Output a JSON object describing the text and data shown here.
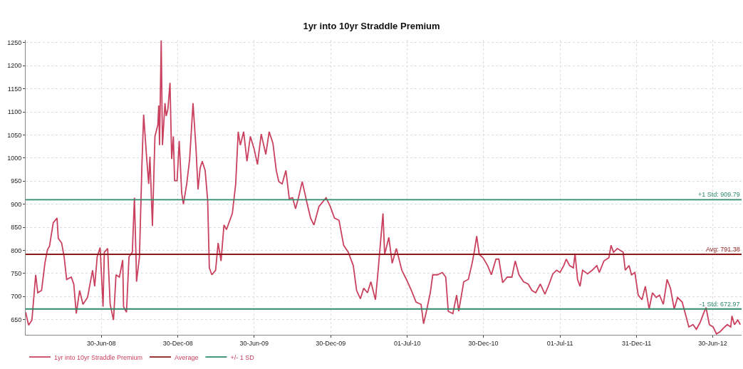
{
  "chart_data": {
    "type": "line",
    "title": "1yr into 10yr Straddle Premium",
    "xlim": [
      "2008-01-01",
      "2012-09-07"
    ],
    "ylim": [
      617,
      1256
    ],
    "xticks": [
      {
        "value": "2008-06-30",
        "label": "30-Jun-08"
      },
      {
        "value": "2008-12-30",
        "label": "30-Dec-08"
      },
      {
        "value": "2009-06-30",
        "label": "30-Jun-09"
      },
      {
        "value": "2009-12-30",
        "label": "30-Dec-09"
      },
      {
        "value": "2010-07-01",
        "label": "01-Jul-10"
      },
      {
        "value": "2010-12-30",
        "label": "30-Dec-10"
      },
      {
        "value": "2011-07-01",
        "label": "01-Jul-11"
      },
      {
        "value": "2011-12-31",
        "label": "31-Dec-11"
      },
      {
        "value": "2012-06-30",
        "label": "30-Jun-12"
      }
    ],
    "yticks": [
      650,
      700,
      750,
      800,
      850,
      900,
      950,
      1000,
      1050,
      1100,
      1150,
      1200,
      1250
    ],
    "grid": true,
    "legend": "bottom left",
    "marker": "none",
    "line_style": "solid",
    "series": [
      {
        "name": "1yr into 10yr Straddle Premium",
        "color": "#c9415e",
        "x": [
          "2008-01-01",
          "2008-01-08",
          "2008-01-16",
          "2008-01-25",
          "2008-01-30",
          "2008-02-08",
          "2008-02-16",
          "2008-02-22",
          "2008-02-27",
          "2008-03-07",
          "2008-03-16",
          "2008-03-19",
          "2008-03-27",
          "2008-04-02",
          "2008-04-08",
          "2008-04-19",
          "2008-04-25",
          "2008-05-01",
          "2008-05-09",
          "2008-05-17",
          "2008-05-28",
          "2008-06-09",
          "2008-06-14",
          "2008-06-20",
          "2008-06-27",
          "2008-07-04",
          "2008-07-07",
          "2008-07-15",
          "2008-07-21",
          "2008-07-29",
          "2008-08-04",
          "2008-08-12",
          "2008-08-20",
          "2008-08-22",
          "2008-08-29",
          "2008-09-04",
          "2008-09-12",
          "2008-09-17",
          "2008-09-21",
          "2008-09-22",
          "2008-09-29",
          "2008-10-05",
          "2008-10-09",
          "2008-10-16",
          "2008-10-21",
          "2008-10-24",
          "2008-10-30",
          "2008-11-05",
          "2008-11-12",
          "2008-11-14",
          "2008-11-16",
          "2008-11-20",
          "2008-11-23",
          "2008-11-29",
          "2008-12-02",
          "2008-12-06",
          "2008-12-11",
          "2008-12-15",
          "2008-12-19",
          "2008-12-22",
          "2008-12-28",
          "2009-01-02",
          "2009-01-08",
          "2009-01-12",
          "2009-01-20",
          "2009-01-27",
          "2009-02-04",
          "2009-02-11",
          "2009-02-16",
          "2009-02-21",
          "2009-02-26",
          "2009-03-05",
          "2009-03-11",
          "2009-03-15",
          "2009-03-21",
          "2009-03-30",
          "2009-04-05",
          "2009-04-12",
          "2009-04-19",
          "2009-04-25",
          "2009-05-01",
          "2009-05-09",
          "2009-05-17",
          "2009-05-23",
          "2009-05-28",
          "2009-06-05",
          "2009-06-13",
          "2009-06-21",
          "2009-06-30",
          "2009-07-08",
          "2009-07-17",
          "2009-07-28",
          "2009-08-05",
          "2009-08-14",
          "2009-08-22",
          "2009-08-28",
          "2009-09-05",
          "2009-09-14",
          "2009-09-22",
          "2009-09-30",
          "2009-10-07",
          "2009-10-14",
          "2009-10-23",
          "2009-11-03",
          "2009-11-12",
          "2009-11-20",
          "2009-12-02",
          "2009-12-19",
          "2009-12-29",
          "2010-01-08",
          "2010-01-19",
          "2010-01-30",
          "2010-02-10",
          "2010-02-22",
          "2010-03-02",
          "2010-03-11",
          "2010-03-19",
          "2010-03-28",
          "2010-04-05",
          "2010-04-16",
          "2010-04-22",
          "2010-05-04",
          "2010-05-08",
          "2010-05-18",
          "2010-05-26",
          "2010-06-05",
          "2010-06-18",
          "2010-06-29",
          "2010-07-11",
          "2010-07-22",
          "2010-08-03",
          "2010-08-09",
          "2010-08-17",
          "2010-08-25",
          "2010-08-31",
          "2010-09-11",
          "2010-09-23",
          "2010-10-01",
          "2010-10-07",
          "2010-10-18",
          "2010-10-27",
          "2010-11-01",
          "2010-11-13",
          "2010-11-24",
          "2010-12-03",
          "2010-12-08",
          "2010-12-14",
          "2010-12-20",
          "2010-12-29",
          "2011-01-09",
          "2011-01-18",
          "2011-01-29",
          "2011-02-05",
          "2011-02-14",
          "2011-02-25",
          "2011-03-08",
          "2011-03-16",
          "2011-03-25",
          "2011-04-05",
          "2011-04-16",
          "2011-04-25",
          "2011-05-04",
          "2011-05-15",
          "2011-05-26",
          "2011-06-03",
          "2011-06-14",
          "2011-06-23",
          "2011-07-01",
          "2011-07-10",
          "2011-07-16",
          "2011-07-24",
          "2011-08-02",
          "2011-08-06",
          "2011-08-12",
          "2011-08-18",
          "2011-08-24",
          "2011-09-05",
          "2011-09-16",
          "2011-09-27",
          "2011-10-03",
          "2011-10-14",
          "2011-10-26",
          "2011-10-31",
          "2011-11-06",
          "2011-11-15",
          "2011-11-29",
          "2011-12-04",
          "2011-12-13",
          "2011-12-19",
          "2011-12-27",
          "2012-01-04",
          "2012-01-13",
          "2012-01-21",
          "2012-01-30",
          "2012-02-07",
          "2012-02-16",
          "2012-02-24",
          "2012-03-04",
          "2012-03-13",
          "2012-03-21",
          "2012-03-30",
          "2012-04-07",
          "2012-04-18",
          "2012-04-27",
          "2012-05-04",
          "2012-05-14",
          "2012-05-22",
          "2012-05-31",
          "2012-06-08",
          "2012-06-14",
          "2012-06-22",
          "2012-07-01",
          "2012-07-09",
          "2012-07-18",
          "2012-07-26",
          "2012-08-04",
          "2012-08-12",
          "2012-08-15",
          "2012-08-21",
          "2012-08-29",
          "2012-09-04"
        ],
        "values": [
          666,
          638,
          649,
          747,
          708,
          713,
          772,
          801,
          809,
          860,
          870,
          826,
          816,
          786,
          737,
          742,
          727,
          663,
          713,
          683,
          698,
          757,
          722,
          786,
          806,
          678,
          796,
          804,
          683,
          649,
          747,
          742,
          779,
          678,
          666,
          786,
          796,
          914,
          777,
          732,
          786,
          988,
          1094,
          1003,
          944,
          1003,
          853,
          1047,
          1072,
          1114,
          1028,
          1255,
          1028,
          1119,
          1091,
          1106,
          1163,
          998,
          1047,
          951,
          951,
          1037,
          924,
          900,
          944,
          998,
          1119,
          1023,
          932,
          978,
          993,
          973,
          909,
          762,
          747,
          757,
          816,
          777,
          855,
          845,
          860,
          880,
          944,
          1057,
          1028,
          1057,
          993,
          1047,
          1020,
          986,
          1052,
          1008,
          1057,
          1032,
          973,
          949,
          944,
          973,
          912,
          914,
          890,
          914,
          949,
          904,
          870,
          855,
          895,
          914,
          895,
          870,
          865,
          811,
          796,
          767,
          713,
          695,
          718,
          708,
          732,
          693,
          752,
          880,
          791,
          828,
          772,
          804,
          757,
          737,
          713,
          688,
          683,
          641,
          673,
          708,
          747,
          747,
          752,
          742,
          668,
          663,
          703,
          668,
          732,
          737,
          772,
          796,
          831,
          791,
          784,
          767,
          747,
          781,
          781,
          730,
          742,
          742,
          777,
          747,
          732,
          727,
          713,
          708,
          727,
          705,
          722,
          749,
          757,
          752,
          767,
          781,
          767,
          762,
          793,
          737,
          722,
          757,
          749,
          757,
          767,
          752,
          777,
          784,
          811,
          796,
          804,
          796,
          757,
          767,
          747,
          752,
          703,
          693,
          722,
          673,
          708,
          698,
          703,
          683,
          737,
          718,
          673,
          698,
          688,
          658,
          634,
          639,
          629,
          644,
          663,
          676,
          639,
          634,
          619,
          624,
          632,
          639,
          634,
          658,
          639,
          649,
          639
        ]
      },
      {
        "name": "Average",
        "color": "#8b1a1a",
        "x": [
          "2008-01-01",
          "2012-09-07"
        ],
        "values": [
          791.38,
          791.38
        ]
      },
      {
        "name": "+/- 1 SD",
        "color": "#2e8b6a",
        "x": [
          "2008-01-01",
          "2012-09-07"
        ],
        "values": [
          909.79,
          909.79
        ]
      },
      {
        "color": "#2e8b6a",
        "x": [
          "2008-01-01",
          "2012-09-07"
        ],
        "values": [
          672.97,
          672.97
        ]
      }
    ],
    "annotations": [
      {
        "text": "+1 Std: 909.79",
        "x": "2012-09-07",
        "y": 909.79
      },
      {
        "text": "Avg: 791.38",
        "x": "2012-09-07",
        "y": 791.38
      },
      {
        "text": "-1 Std: 672.97",
        "x": "2012-09-07",
        "y": 672.97
      }
    ]
  }
}
